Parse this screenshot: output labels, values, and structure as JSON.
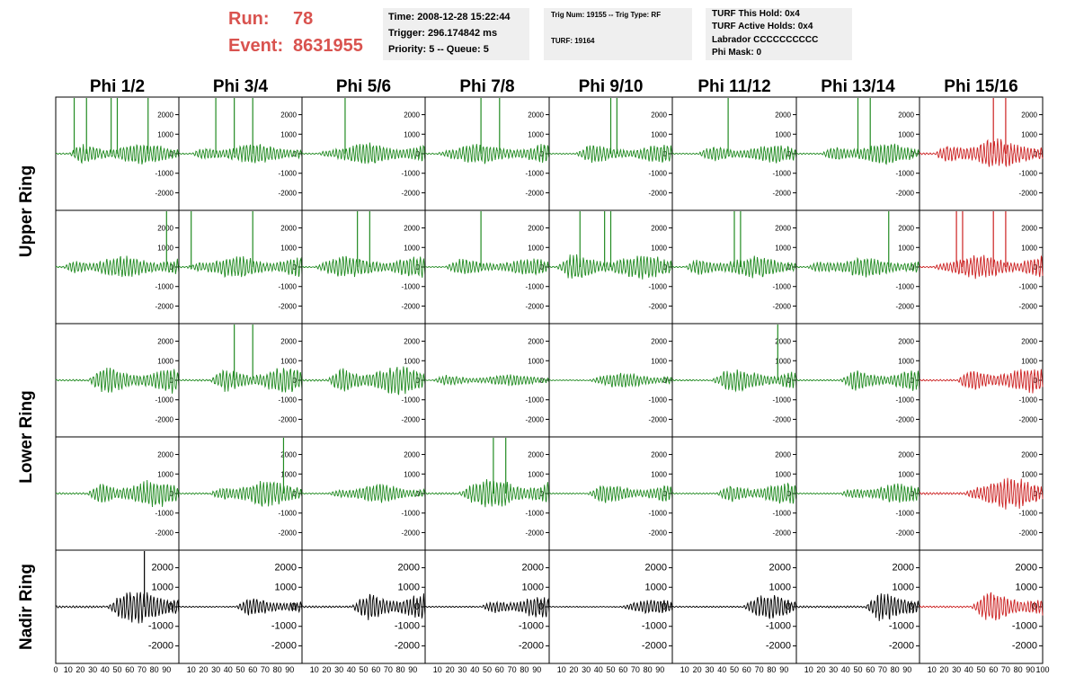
{
  "header": {
    "run_label": "Run:",
    "run_value": "78",
    "event_label": "Event:",
    "event_value": "8631955",
    "box1": [
      "Time: 2008-12-28 15:22:44",
      "Trigger: 296.174842 ms",
      "Priority: 5 -- Queue: 5"
    ],
    "box2": [
      "Trig Num: 19155 -- Trig Type: RF",
      "TURF: 19164"
    ],
    "box3": [
      "TURF This Hold: 0x4",
      "TURF Active Holds: 0x4",
      "Labrador CCCCCCCCCC",
      "Phi Mask: 0"
    ]
  },
  "columns": [
    "Phi 1/2",
    "Phi 3/4",
    "Phi 5/6",
    "Phi 7/8",
    "Phi 9/10",
    "Phi 11/12",
    "Phi 13/14",
    "Phi 15/16"
  ],
  "row_groups": [
    "Upper Ring",
    "Lower Ring",
    "Nadir Ring"
  ],
  "colors": {
    "trigger": "#228b22",
    "phi_masked": "#cc2222",
    "nadir": "#000000",
    "header_red": "#d9534f",
    "box_bg": "#efefef"
  },
  "chart_data": {
    "type": "line",
    "title": "",
    "xlabel": "",
    "ylabel": "",
    "x_ticks": [
      0,
      10,
      20,
      30,
      40,
      50,
      60,
      70,
      80,
      90,
      100
    ],
    "y_ticks": [
      -2000,
      -1000,
      0,
      1000,
      2000
    ],
    "xlim": [
      0,
      100
    ],
    "ylim": [
      -2900,
      2900
    ],
    "note_panels": "5 rows x 8 columns of waveform panels; amplitudes approximate",
    "panels": [
      {
        "row": 0,
        "col": 0,
        "amp": 600,
        "start": 10,
        "spikes": [
          15,
          25,
          45,
          50,
          75
        ]
      },
      {
        "row": 0,
        "col": 1,
        "amp": 550,
        "start": 10,
        "spikes": [
          30,
          45,
          60
        ]
      },
      {
        "row": 0,
        "col": 2,
        "amp": 600,
        "start": 12,
        "spikes": [
          35
        ]
      },
      {
        "row": 0,
        "col": 3,
        "amp": 550,
        "start": 8,
        "spikes": [
          45,
          60
        ]
      },
      {
        "row": 0,
        "col": 4,
        "amp": 500,
        "start": 20,
        "spikes": [
          50,
          55
        ]
      },
      {
        "row": 0,
        "col": 5,
        "amp": 500,
        "start": 20,
        "spikes": [
          45
        ]
      },
      {
        "row": 0,
        "col": 6,
        "amp": 600,
        "start": 20,
        "spikes": [
          50,
          60
        ]
      },
      {
        "row": 0,
        "col": 7,
        "amp": 800,
        "start": 12,
        "spikes": [
          60,
          70
        ]
      },
      {
        "row": 1,
        "col": 0,
        "amp": 600,
        "start": 5,
        "spikes": [
          90
        ]
      },
      {
        "row": 1,
        "col": 1,
        "amp": 600,
        "start": 5,
        "spikes": [
          10,
          60
        ]
      },
      {
        "row": 1,
        "col": 2,
        "amp": 600,
        "start": 8,
        "spikes": [
          45,
          55
        ]
      },
      {
        "row": 1,
        "col": 3,
        "amp": 450,
        "start": 15,
        "spikes": [
          45
        ]
      },
      {
        "row": 1,
        "col": 4,
        "amp": 700,
        "start": 5,
        "spikes": [
          25,
          45,
          50
        ]
      },
      {
        "row": 1,
        "col": 5,
        "amp": 600,
        "start": 10,
        "spikes": [
          50,
          55
        ]
      },
      {
        "row": 1,
        "col": 6,
        "amp": 550,
        "start": 8,
        "spikes": [
          75
        ]
      },
      {
        "row": 1,
        "col": 7,
        "amp": 650,
        "start": 10,
        "spikes": [
          30,
          35,
          60,
          70
        ]
      },
      {
        "row": 2,
        "col": 0,
        "amp": 700,
        "start": 25,
        "spikes": []
      },
      {
        "row": 2,
        "col": 1,
        "amp": 700,
        "start": 25,
        "spikes": [
          45,
          60
        ]
      },
      {
        "row": 2,
        "col": 2,
        "amp": 800,
        "start": 20,
        "spikes": []
      },
      {
        "row": 2,
        "col": 3,
        "amp": 300,
        "start": 5,
        "spikes": []
      },
      {
        "row": 2,
        "col": 4,
        "amp": 400,
        "start": 30,
        "spikes": []
      },
      {
        "row": 2,
        "col": 5,
        "amp": 600,
        "start": 30,
        "spikes": [
          85
        ]
      },
      {
        "row": 2,
        "col": 6,
        "amp": 600,
        "start": 35,
        "spikes": []
      },
      {
        "row": 2,
        "col": 7,
        "amp": 700,
        "start": 30,
        "spikes": []
      },
      {
        "row": 3,
        "col": 0,
        "amp": 750,
        "start": 25,
        "spikes": []
      },
      {
        "row": 3,
        "col": 1,
        "amp": 700,
        "start": 25,
        "spikes": [
          85
        ]
      },
      {
        "row": 3,
        "col": 2,
        "amp": 500,
        "start": 20,
        "spikes": []
      },
      {
        "row": 3,
        "col": 3,
        "amp": 800,
        "start": 25,
        "spikes": [
          55,
          65
        ]
      },
      {
        "row": 3,
        "col": 4,
        "amp": 500,
        "start": 30,
        "spikes": []
      },
      {
        "row": 3,
        "col": 5,
        "amp": 600,
        "start": 35,
        "spikes": []
      },
      {
        "row": 3,
        "col": 6,
        "amp": 550,
        "start": 35,
        "spikes": []
      },
      {
        "row": 3,
        "col": 7,
        "amp": 900,
        "start": 35,
        "spikes": []
      },
      {
        "row": 4,
        "col": 0,
        "amp": 900,
        "start": 40,
        "spikes": [
          72
        ]
      },
      {
        "row": 4,
        "col": 1,
        "amp": 500,
        "start": 45,
        "spikes": []
      },
      {
        "row": 4,
        "col": 2,
        "amp": 800,
        "start": 40,
        "spikes": []
      },
      {
        "row": 4,
        "col": 3,
        "amp": 600,
        "start": 45,
        "spikes": []
      },
      {
        "row": 4,
        "col": 4,
        "amp": 400,
        "start": 55,
        "spikes": []
      },
      {
        "row": 4,
        "col": 5,
        "amp": 650,
        "start": 55,
        "spikes": []
      },
      {
        "row": 4,
        "col": 6,
        "amp": 800,
        "start": 55,
        "spikes": []
      },
      {
        "row": 4,
        "col": 7,
        "amp": 750,
        "start": 40,
        "spikes": []
      }
    ]
  }
}
